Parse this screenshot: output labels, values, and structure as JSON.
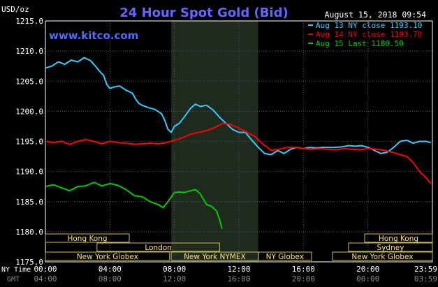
{
  "chart_data": {
    "type": "line",
    "title": "24 Hour Spot Gold (Bid)",
    "subtitle": "www.kitco.com",
    "timestamp": "August 15, 2018 09:54",
    "ylabel": "USD/oz",
    "ylim": [
      1175,
      1215
    ],
    "yticks": [
      "1215.0",
      "1210.0",
      "1205.0",
      "1200.0",
      "1195.0",
      "1190.0",
      "1185.0",
      "1180.0",
      "1175.0"
    ],
    "xlim": [
      0,
      24
    ],
    "x_ny_label": "NY Time",
    "x_gmt_label": "GMT",
    "x_ny_ticks": [
      "00:00",
      "04:00",
      "08:00",
      "12:00",
      "16:00",
      "20:00",
      "23:59"
    ],
    "x_gmt_ticks": [
      "04:00",
      "08:00",
      "12:00",
      "16:00",
      "20:00",
      "00:00",
      "03:59"
    ],
    "grid": true,
    "legend_position": "top-right",
    "highlight_window": [
      7.8,
      13.2
    ],
    "series": [
      {
        "name": "Aug 13 NY close 1193.10",
        "color": "#33ccff",
        "x": [
          0,
          0.4,
          0.8,
          1.2,
          1.6,
          2.0,
          2.4,
          2.8,
          3.1,
          3.4,
          3.6,
          3.8,
          4.0,
          4.2,
          4.6,
          5.0,
          5.4,
          5.6,
          5.8,
          6.0,
          6.4,
          6.8,
          7.2,
          7.4,
          7.6,
          7.8,
          8.0,
          8.3,
          8.6,
          9.0,
          9.3,
          9.6,
          10.0,
          10.4,
          10.8,
          11.2,
          11.6,
          12.0,
          12.4,
          12.8,
          13.2,
          13.6,
          14.0,
          14.4,
          14.8,
          15.2,
          15.6,
          16.0,
          16.4,
          16.8,
          17.2,
          17.6,
          18.0,
          18.4,
          18.8,
          19.2,
          19.6,
          20.0,
          20.4,
          20.8,
          21.2,
          21.6,
          22.0,
          22.4,
          22.8,
          23.2,
          23.6,
          23.9
        ],
        "y": [
          1207.2,
          1207.5,
          1208.2,
          1207.8,
          1208.5,
          1208.2,
          1208.9,
          1208.4,
          1207.5,
          1206.5,
          1206.0,
          1204.5,
          1203.8,
          1204.0,
          1204.2,
          1203.5,
          1203.0,
          1202.0,
          1201.3,
          1201.0,
          1200.6,
          1200.3,
          1199.6,
          1198.5,
          1197.0,
          1196.5,
          1197.5,
          1198.0,
          1199.0,
          1200.5,
          1201.2,
          1200.8,
          1201.0,
          1200.2,
          1199.0,
          1198.0,
          1197.0,
          1196.5,
          1196.5,
          1195.2,
          1194.0,
          1193.0,
          1192.8,
          1193.5,
          1193.0,
          1193.7,
          1194.0,
          1193.8,
          1194.0,
          1193.9,
          1194.0,
          1194.0,
          1194.0,
          1194.1,
          1194.3,
          1194.2,
          1194.3,
          1194.0,
          1193.5,
          1193.0,
          1193.2,
          1194.0,
          1195.0,
          1195.2,
          1194.7,
          1195.0,
          1195.0,
          1194.8
        ]
      },
      {
        "name": "Aug 14 NY close 1193.70",
        "color": "#ff0000",
        "x": [
          0,
          0.5,
          1.0,
          1.5,
          2.0,
          2.5,
          3.0,
          3.5,
          4.0,
          4.5,
          5.0,
          5.5,
          6.0,
          6.5,
          7.0,
          7.5,
          8.0,
          8.5,
          9.0,
          9.5,
          10.0,
          10.5,
          11.0,
          11.5,
          12.0,
          12.5,
          13.0,
          13.5,
          14.0,
          14.5,
          15.0,
          15.5,
          16.0,
          16.5,
          17.0,
          17.5,
          18.0,
          18.5,
          19.0,
          19.5,
          20.0,
          20.5,
          21.0,
          21.5,
          22.0,
          22.4,
          22.8,
          23.2,
          23.6,
          23.9
        ],
        "y": [
          1195.0,
          1194.8,
          1195.0,
          1194.5,
          1195.0,
          1195.3,
          1195.0,
          1194.6,
          1195.0,
          1194.8,
          1194.7,
          1194.5,
          1194.6,
          1194.7,
          1194.6,
          1194.8,
          1195.2,
          1195.6,
          1196.2,
          1196.5,
          1196.8,
          1197.3,
          1198.0,
          1197.8,
          1197.2,
          1196.5,
          1195.8,
          1194.5,
          1193.5,
          1193.7,
          1194.0,
          1194.0,
          1193.8,
          1193.7,
          1193.8,
          1193.7,
          1193.6,
          1193.8,
          1193.7,
          1193.6,
          1193.8,
          1193.7,
          1193.5,
          1193.2,
          1192.8,
          1192.5,
          1191.5,
          1190.0,
          1189.0,
          1188.0
        ]
      },
      {
        "name": "Aug 15 Last 1180.50",
        "color": "#00cc00",
        "x": [
          0,
          0.5,
          1.0,
          1.5,
          2.0,
          2.5,
          3.0,
          3.5,
          4.0,
          4.5,
          5.0,
          5.5,
          6.0,
          6.5,
          7.0,
          7.3,
          7.6,
          8.0,
          8.3,
          8.6,
          9.0,
          9.3,
          9.6,
          10.0,
          10.3,
          10.6,
          10.8,
          10.95
        ],
        "y": [
          1187.5,
          1187.8,
          1187.3,
          1186.8,
          1187.5,
          1187.6,
          1188.2,
          1187.6,
          1188.0,
          1187.7,
          1187.0,
          1186.0,
          1185.8,
          1185.0,
          1184.5,
          1184.0,
          1185.0,
          1186.5,
          1186.6,
          1186.5,
          1186.8,
          1187.0,
          1186.3,
          1184.5,
          1184.2,
          1183.5,
          1182.0,
          1180.5
        ]
      }
    ],
    "sessions": [
      {
        "label": "Hong Kong",
        "start": 0,
        "end": 5.2,
        "row": 0
      },
      {
        "label": "London",
        "start": 3.2,
        "end": 10.8,
        "row": 1
      },
      {
        "label": "New York Globex",
        "start": 0,
        "end": 7.7,
        "row": 2
      },
      {
        "label": "New York NYMEX",
        "start": 7.8,
        "end": 13.2,
        "row": 2
      },
      {
        "label": "NY Globex",
        "start": 13.2,
        "end": 16.5,
        "row": 2
      },
      {
        "label": "Hong Kong",
        "start": 19.8,
        "end": 24,
        "row": 0
      },
      {
        "label": "Sydney",
        "start": 18.8,
        "end": 24,
        "row": 1
      },
      {
        "label": "New York Globex",
        "start": 17.8,
        "end": 24,
        "row": 2
      }
    ]
  }
}
